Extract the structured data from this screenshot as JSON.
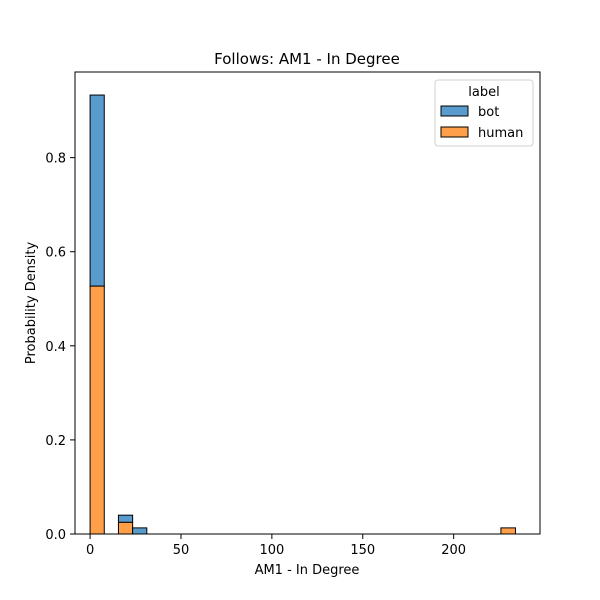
{
  "chart_data": {
    "type": "bar",
    "stacked": true,
    "title": "Follows: AM1 - In Degree",
    "xlabel": "AM1 - In Degree",
    "ylabel": "Probability Density",
    "xlim": [
      -8.3,
      247.5
    ],
    "ylim": [
      0,
      0.982
    ],
    "xticks": [
      0,
      50,
      100,
      150,
      200
    ],
    "yticks": [
      0.0,
      0.2,
      0.4,
      0.6,
      0.8
    ],
    "ytick_labels": [
      "0.0",
      "0.2",
      "0.4",
      "0.6",
      "0.8"
    ],
    "legend": {
      "title": "label",
      "placement": "top-right"
    },
    "series": [
      {
        "name": "human",
        "color": "#ff9f4a",
        "bins": [
          {
            "x0": 0.0,
            "x1": 7.8,
            "value": 0.527
          },
          {
            "x0": 15.6,
            "x1": 23.4,
            "value": 0.025
          },
          {
            "x0": 226.0,
            "x1": 234.0,
            "value": 0.013
          }
        ]
      },
      {
        "name": "bot",
        "color": "#5a9bce",
        "bins": [
          {
            "x0": 0.0,
            "x1": 7.8,
            "value": 0.406
          },
          {
            "x0": 15.6,
            "x1": 23.4,
            "value": 0.015
          },
          {
            "x0": 23.4,
            "x1": 31.2,
            "value": 0.013
          }
        ]
      }
    ]
  }
}
